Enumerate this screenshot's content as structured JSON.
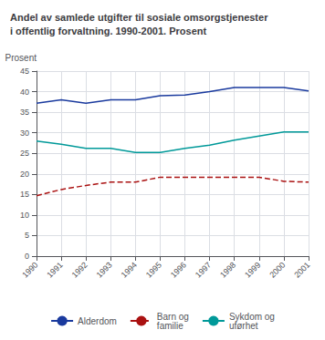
{
  "chart_data": {
    "type": "line",
    "title": "Andel av samlede utgifter til sosiale omsorgstjenester\ni offentlig forvaltning. 1990-2001. Prosent",
    "ylabel": "Prosent",
    "x": [
      1990,
      1991,
      1992,
      1993,
      1994,
      1995,
      1996,
      1997,
      1998,
      1999,
      2000,
      2001
    ],
    "xlim": [
      1990,
      2001
    ],
    "xticks": [
      1990,
      1991,
      1992,
      1993,
      1994,
      1995,
      1996,
      1997,
      1998,
      1999,
      2000,
      2001
    ],
    "series": [
      {
        "name": "Alderdom",
        "color": "#1a3a9e",
        "line_style": "solid",
        "values": [
          37.2,
          38.0,
          37.2,
          38.0,
          38.0,
          39.0,
          39.2,
          40.0,
          41.0,
          41.0,
          41.0,
          40.2
        ]
      },
      {
        "name": "Barn og\nfamilie",
        "color": "#aa1111",
        "line_style": "dashed",
        "values": [
          14.7,
          16.2,
          17.2,
          18.0,
          18.0,
          19.2,
          19.2,
          19.2,
          19.2,
          19.2,
          18.2,
          18.0
        ]
      },
      {
        "name": "Sykdom og\nuførhet",
        "color": "#009999",
        "line_style": "solid",
        "values": [
          28.0,
          27.2,
          26.2,
          26.2,
          25.2,
          25.2,
          26.2,
          27.0,
          28.2,
          29.2,
          30.2,
          30.2
        ]
      }
    ],
    "ylim": [
      0,
      45
    ],
    "yticks": [
      0,
      5,
      10,
      15,
      20,
      25,
      30,
      35,
      40,
      45
    ],
    "grid": true,
    "legend": "bottom"
  }
}
